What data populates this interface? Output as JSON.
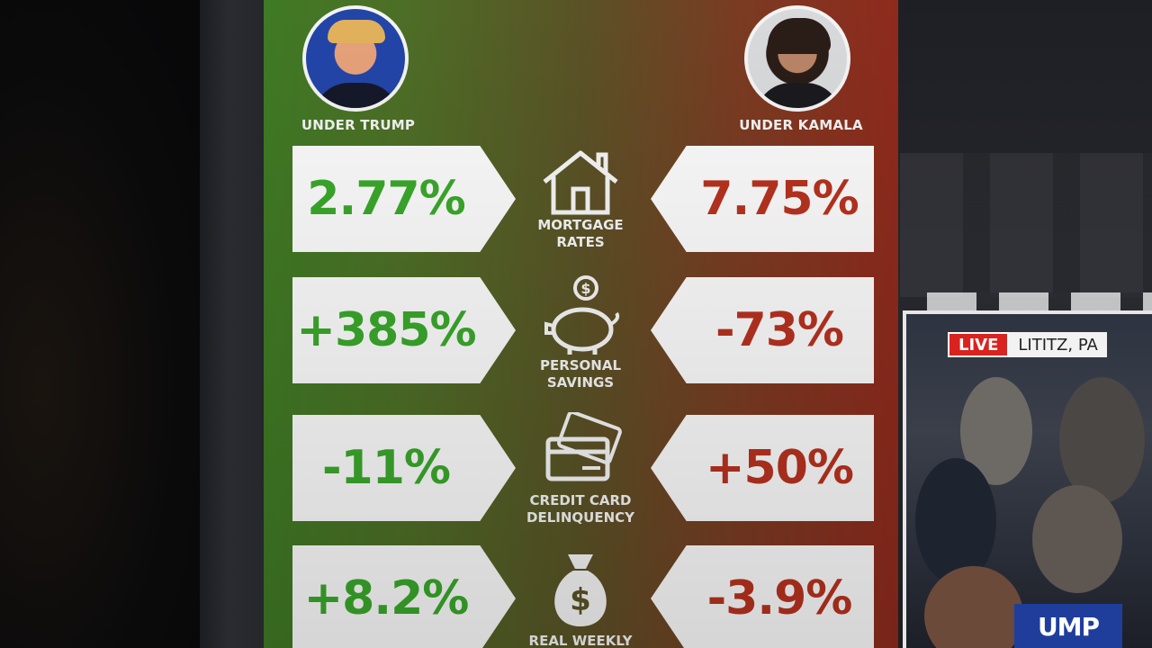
{
  "candidates": {
    "left": {
      "caption": "UNDER TRUMP",
      "color": "#3aa82b"
    },
    "right": {
      "caption": "UNDER KAMALA",
      "color": "#b8321f"
    }
  },
  "rows": [
    {
      "label_1": "MORTGAGE",
      "label_2": "RATES",
      "icon": "house-icon",
      "left": "2.77%",
      "right": "7.75%"
    },
    {
      "label_1": "PERSONAL",
      "label_2": "SAVINGS",
      "icon": "piggy-bank-icon",
      "left": "+385%",
      "right": "-73%"
    },
    {
      "label_1": "CREDIT CARD",
      "label_2": "DELINQUENCY",
      "icon": "credit-cards-icon",
      "left": "-11%",
      "right": "+50%"
    },
    {
      "label_1": "REAL WEEKLY",
      "label_2": "",
      "icon": "money-bag-icon",
      "left": "+8.2%",
      "right": "-3.9%"
    }
  ],
  "live_feed": {
    "live_label": "LIVE",
    "location": "LITITZ, PA",
    "sign_text": "UMP"
  }
}
